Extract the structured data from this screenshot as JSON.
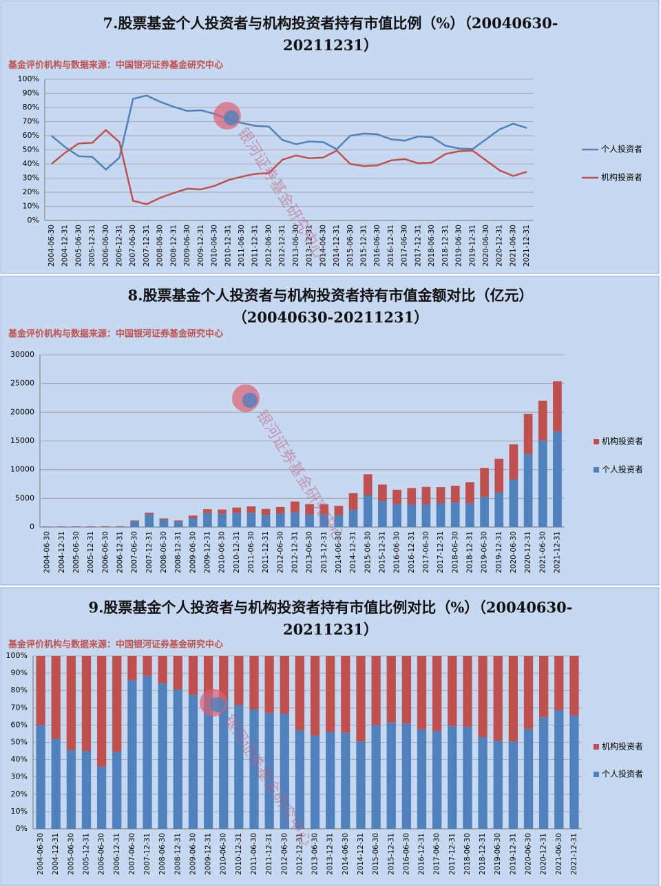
{
  "chart_data": [
    {
      "type": "line",
      "title": "7.股票基金个人投资者与机构投资者持有市值比例（%）（20040630-20211231）",
      "subtitle": "基金评价机构与数据来源：中国银河证券基金研究中心",
      "watermark": "银河证券基金研究中心",
      "categories": [
        "2004-06-30",
        "2004-12-31",
        "2005-06-30",
        "2005-12-31",
        "2006-06-30",
        "2006-12-31",
        "2007-06-30",
        "2007-12-31",
        "2008-06-30",
        "2008-12-31",
        "2009-06-30",
        "2009-12-31",
        "2010-06-30",
        "2010-12-31",
        "2011-06-30",
        "2011-12-31",
        "2012-06-30",
        "2012-12-31",
        "2013-06-30",
        "2013-12-31",
        "2014-06-30",
        "2014-12-31",
        "2015-06-30",
        "2015-12-31",
        "2016-06-30",
        "2016-12-31",
        "2017-06-30",
        "2017-12-31",
        "2018-06-30",
        "2018-12-31",
        "2019-06-30",
        "2019-12-31",
        "2020-06-30",
        "2020-12-31",
        "2021-06-30",
        "2021-12-31"
      ],
      "series": [
        {
          "name": "个人投资者",
          "color": "#4f81bd",
          "values": [
            60,
            52,
            45.5,
            45,
            36,
            44.5,
            86,
            88.5,
            84,
            80.5,
            77.5,
            78,
            75.5,
            71.5,
            69,
            67,
            66.5,
            57,
            54,
            56,
            55.5,
            50.5,
            60,
            61.5,
            61,
            57.5,
            56.5,
            59.5,
            59,
            53,
            51,
            50.5,
            57.5,
            64.5,
            68.5,
            65.5
          ]
        },
        {
          "name": "机构投资者",
          "color": "#c0504d",
          "values": [
            40,
            48,
            54.5,
            55,
            64,
            55.5,
            14,
            11.5,
            16,
            19.5,
            22.5,
            22,
            24.5,
            28.5,
            31,
            33,
            33.5,
            43,
            46,
            44,
            44.5,
            49.5,
            40,
            38.5,
            39,
            42.5,
            43.5,
            40.5,
            41,
            47,
            49,
            49.5,
            42.5,
            35.5,
            31.5,
            34.5
          ]
        }
      ],
      "ylim": [
        0,
        100
      ],
      "yticks": [
        {
          "value": 0,
          "label": "0%"
        },
        {
          "value": 10,
          "label": "10%"
        },
        {
          "value": 20,
          "label": "20%"
        },
        {
          "value": 30,
          "label": "30%"
        },
        {
          "value": 40,
          "label": "40%"
        },
        {
          "value": 50,
          "label": "50%"
        },
        {
          "value": 60,
          "label": "60%"
        },
        {
          "value": 70,
          "label": "70%"
        },
        {
          "value": 80,
          "label": "80%"
        },
        {
          "value": 90,
          "label": "90%"
        },
        {
          "value": 100,
          "label": "100%"
        }
      ],
      "grid": true,
      "legend": "right"
    },
    {
      "type": "stacked_bar",
      "title": "8.股票基金个人投资者与机构投资者持有市值金额对比（亿元）（20040630-20211231）",
      "subtitle": "基金评价机构与数据来源：中国银河证券基金研究中心",
      "watermark": "银河证券基金研究中心",
      "categories": [
        "2004-06-30",
        "2004-12-31",
        "2005-06-30",
        "2005-12-31",
        "2006-06-30",
        "2006-12-31",
        "2007-06-30",
        "2007-12-31",
        "2008-06-30",
        "2008-12-31",
        "2009-06-30",
        "2009-12-31",
        "2010-06-30",
        "2010-12-31",
        "2011-06-30",
        "2011-12-31",
        "2012-06-30",
        "2012-12-31",
        "2013-06-30",
        "2013-12-31",
        "2014-06-30",
        "2014-12-31",
        "2015-06-30",
        "2015-12-31",
        "2016-06-30",
        "2016-12-31",
        "2017-06-30",
        "2017-12-31",
        "2018-06-30",
        "2018-12-31",
        "2019-06-30",
        "2019-12-31",
        "2020-06-30",
        "2020-12-31",
        "2021-06-30",
        "2021-12-31"
      ],
      "series": [
        {
          "name": "个人投资者",
          "color": "#4f81bd",
          "values": [
            60,
            62,
            59,
            58,
            50,
            67,
            990,
            2210,
            1260,
            930,
            1550,
            2420,
            2300,
            2430,
            2480,
            2110,
            2330,
            2540,
            2160,
            2210,
            2050,
            2980,
            5520,
            4550,
            3970,
            3910,
            3960,
            4140,
            4250,
            4130,
            5250,
            6010,
            8280,
            12700,
            15070,
            16640
          ]
        },
        {
          "name": "机构投资者",
          "color": "#c0504d",
          "values": [
            40,
            58,
            71,
            72,
            90,
            83,
            160,
            290,
            240,
            220,
            450,
            680,
            750,
            970,
            1120,
            1040,
            1170,
            1910,
            1840,
            1740,
            1650,
            2920,
            3680,
            2850,
            2530,
            2890,
            3040,
            2810,
            2950,
            3670,
            5050,
            5890,
            6120,
            7000,
            6930,
            8760
          ]
        }
      ],
      "ylim": [
        0,
        30000
      ],
      "yticks": [
        0,
        5000,
        10000,
        15000,
        20000,
        25000,
        30000
      ],
      "grid": true,
      "legend": "right"
    },
    {
      "type": "stacked_bar",
      "title": "9.股票基金个人投资者与机构投资者持有市值比例对比（%）（20040630-20211231）",
      "subtitle": "基金评价机构与数据来源：中国银河证券基金研究中心",
      "watermark": "银河证券基金研究中心",
      "categories": [
        "2004-06-30",
        "2004-12-31",
        "2005-06-30",
        "2005-12-31",
        "2006-06-30",
        "2006-12-31",
        "2007-06-30",
        "2007-12-31",
        "2008-06-30",
        "2008-12-31",
        "2009-06-30",
        "2009-12-31",
        "2010-06-30",
        "2010-12-31",
        "2011-06-30",
        "2011-12-31",
        "2012-06-30",
        "2012-12-31",
        "2013-06-30",
        "2013-12-31",
        "2014-06-30",
        "2014-12-31",
        "2015-06-30",
        "2015-12-31",
        "2016-06-30",
        "2016-12-31",
        "2017-06-30",
        "2017-12-31",
        "2018-06-30",
        "2018-12-31",
        "2019-06-30",
        "2019-12-31",
        "2020-06-30",
        "2020-12-31",
        "2021-06-30",
        "2021-12-31"
      ],
      "series": [
        {
          "name": "个人投资者",
          "color": "#4f81bd",
          "values": [
            60,
            52,
            45.5,
            45,
            36,
            44.5,
            86,
            88.5,
            84,
            80.5,
            77.5,
            78,
            75.5,
            71.5,
            69,
            67,
            66.5,
            57,
            54,
            56,
            55.5,
            50.5,
            60,
            61.5,
            61,
            57.5,
            56.5,
            59.5,
            59,
            53,
            51,
            50.5,
            57.5,
            64.5,
            68.5,
            65.5
          ]
        },
        {
          "name": "机构投资者",
          "color": "#c0504d",
          "values": [
            40,
            48,
            54.5,
            55,
            64,
            55.5,
            14,
            11.5,
            16,
            19.5,
            22.5,
            22,
            24.5,
            28.5,
            31,
            33,
            33.5,
            43,
            46,
            44,
            44.5,
            49.5,
            40,
            38.5,
            39,
            42.5,
            43.5,
            40.5,
            41,
            47,
            49,
            49.5,
            42.5,
            35.5,
            31.5,
            34.5
          ]
        }
      ],
      "ylim": [
        0,
        100
      ],
      "yticks": [
        {
          "value": 0,
          "label": "0%"
        },
        {
          "value": 10,
          "label": "10%"
        },
        {
          "value": 20,
          "label": "20%"
        },
        {
          "value": 30,
          "label": "30%"
        },
        {
          "value": 40,
          "label": "40%"
        },
        {
          "value": 50,
          "label": "50%"
        },
        {
          "value": 60,
          "label": "60%"
        },
        {
          "value": 70,
          "label": "70%"
        },
        {
          "value": 80,
          "label": "80%"
        },
        {
          "value": 90,
          "label": "90%"
        },
        {
          "value": 100,
          "label": "100%"
        }
      ],
      "grid": true,
      "legend": "right"
    }
  ]
}
